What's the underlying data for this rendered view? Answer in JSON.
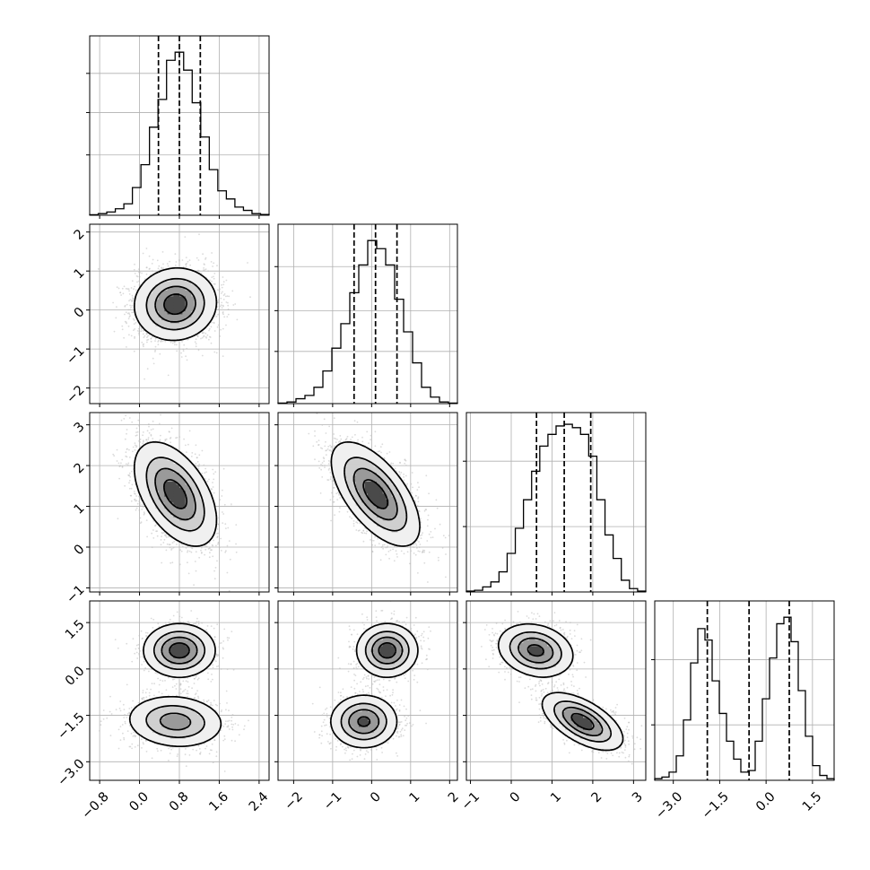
{
  "chart_data": {
    "type": "corner",
    "grid": true,
    "parameters": [
      {
        "id": "p0",
        "ticks": [
          -0.8,
          0.0,
          0.8,
          1.6,
          2.4
        ],
        "tick_labels": [
          "−0.8",
          "0.0",
          "0.8",
          "1.6",
          "2.4"
        ],
        "range": [
          -1.0,
          2.6
        ],
        "quantiles": [
          0.38,
          0.8,
          1.22
        ],
        "hist_y_ticks": [
          0.37,
          0.63,
          0.87
        ],
        "hist_y_range": [
          0,
          1.1
        ],
        "hist": [
          0.003,
          0.01,
          0.02,
          0.04,
          0.07,
          0.17,
          0.31,
          0.54,
          0.71,
          0.95,
          1.0,
          0.89,
          0.69,
          0.48,
          0.28,
          0.15,
          0.1,
          0.05,
          0.03,
          0.01,
          0.005
        ]
      },
      {
        "id": "p1",
        "ticks": [
          -2,
          -1,
          0,
          1,
          2
        ],
        "tick_labels": [
          "−2",
          "−1",
          "0",
          "1",
          "2"
        ],
        "range": [
          -2.4,
          2.2
        ],
        "quantiles": [
          -0.45,
          0.1,
          0.65
        ],
        "hist_y_ticks": [
          0.32,
          0.57,
          0.84
        ],
        "hist_y_range": [
          0,
          1.1
        ],
        "hist": [
          0.003,
          0.01,
          0.03,
          0.05,
          0.1,
          0.2,
          0.34,
          0.49,
          0.68,
          0.85,
          1.0,
          0.95,
          0.85,
          0.64,
          0.44,
          0.25,
          0.1,
          0.04,
          0.01,
          0.003
        ]
      },
      {
        "id": "p2",
        "ticks": [
          -1,
          0,
          1,
          2,
          3
        ],
        "tick_labels": [
          "−1",
          "0",
          "1",
          "2",
          "3"
        ],
        "range": [
          -1.1,
          3.3
        ],
        "quantiles": [
          0.62,
          1.3,
          1.95
        ],
        "hist_y_ticks": [
          0.39,
          0.78
        ],
        "hist_y_range": [
          0,
          1.07
        ],
        "hist": [
          0.005,
          0.01,
          0.03,
          0.06,
          0.12,
          0.23,
          0.38,
          0.55,
          0.72,
          0.87,
          0.94,
          0.99,
          1.0,
          0.98,
          0.94,
          0.81,
          0.55,
          0.34,
          0.2,
          0.07,
          0.02,
          0.005
        ]
      },
      {
        "id": "p3",
        "ticks": [
          -3.0,
          -1.5,
          0.0,
          1.5
        ],
        "tick_labels": [
          "−3.0",
          "−1.5",
          "0.0",
          "1.5"
        ],
        "range": [
          -3.6,
          2.2
        ],
        "quantiles": [
          -1.9,
          -0.55,
          0.75
        ],
        "hist_y_ticks": [
          0.34,
          0.74
        ],
        "hist_y_range": [
          0,
          1.1
        ],
        "hist": [
          0.01,
          0.02,
          0.05,
          0.15,
          0.37,
          0.72,
          0.93,
          0.86,
          0.61,
          0.41,
          0.24,
          0.13,
          0.05,
          0.06,
          0.24,
          0.5,
          0.75,
          0.96,
          1.0,
          0.85,
          0.55,
          0.27,
          0.09,
          0.03,
          0.01
        ]
      }
    ],
    "pairs": [
      {
        "row": 1,
        "col": 0,
        "clusters": [
          {
            "mx": 0.72,
            "my": 0.15,
            "sx": 0.4,
            "sy": 0.45,
            "rho": 0.05,
            "w": 1.0
          }
        ]
      },
      {
        "row": 2,
        "col": 0,
        "clusters": [
          {
            "mx": 0.72,
            "my": 1.3,
            "sx": 0.4,
            "sy": 0.62,
            "rho": -0.5,
            "w": 1.0
          }
        ]
      },
      {
        "row": 2,
        "col": 1,
        "clusters": [
          {
            "mx": 0.1,
            "my": 1.3,
            "sx": 0.55,
            "sy": 0.62,
            "rho": -0.62,
            "w": 1.0
          }
        ]
      },
      {
        "row": 3,
        "col": 0,
        "clusters": [
          {
            "mx": 0.8,
            "my": 0.6,
            "sx": 0.35,
            "sy": 0.42,
            "rho": 0.0,
            "w": 0.5
          },
          {
            "mx": 0.72,
            "my": -1.7,
            "sx": 0.48,
            "sy": 0.42,
            "rho": -0.1,
            "w": 0.5
          }
        ]
      },
      {
        "row": 3,
        "col": 1,
        "clusters": [
          {
            "mx": 0.4,
            "my": 0.6,
            "sx": 0.38,
            "sy": 0.42,
            "rho": 0.0,
            "w": 0.5
          },
          {
            "mx": -0.2,
            "my": -1.7,
            "sx": 0.42,
            "sy": 0.42,
            "rho": 0.0,
            "w": 0.5
          }
        ]
      },
      {
        "row": 3,
        "col": 2,
        "clusters": [
          {
            "mx": 0.6,
            "my": 0.6,
            "sx": 0.45,
            "sy": 0.42,
            "rho": -0.2,
            "w": 0.5
          },
          {
            "mx": 1.75,
            "my": -1.7,
            "sx": 0.48,
            "sy": 0.45,
            "rho": -0.6,
            "w": 0.5
          }
        ]
      }
    ]
  }
}
